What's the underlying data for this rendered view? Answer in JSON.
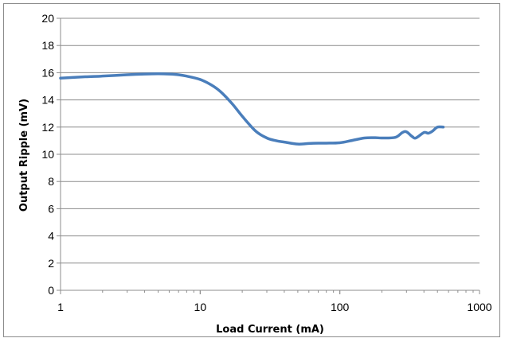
{
  "chart_data": {
    "type": "line",
    "xlabel": "Load Current (mA)",
    "ylabel": "Output Ripple (mV)",
    "xscale": "log",
    "xlim": [
      1,
      1000
    ],
    "ylim": [
      0,
      20
    ],
    "xticks": [
      1,
      10,
      100,
      1000
    ],
    "xtick_labels": [
      "1",
      "10",
      "100",
      "1000"
    ],
    "yticks": [
      0,
      2,
      4,
      6,
      8,
      10,
      12,
      14,
      16,
      18,
      20
    ],
    "ytick_labels": [
      "0",
      "2",
      "4",
      "6",
      "8",
      "10",
      "12",
      "14",
      "16",
      "18",
      "20"
    ],
    "grid": "horizontal",
    "legend": "none",
    "series": [
      {
        "color": "#4a7ebb",
        "x": [
          1,
          1.5,
          2,
          3,
          4,
          5,
          6,
          7,
          8,
          10,
          12,
          14,
          17,
          20,
          25,
          30,
          35,
          40,
          50,
          60,
          70,
          80,
          100,
          120,
          150,
          180,
          200,
          250,
          280,
          300,
          330,
          350,
          400,
          430,
          460,
          500,
          550
        ],
        "y": [
          15.6,
          15.7,
          15.75,
          15.85,
          15.9,
          15.92,
          15.9,
          15.85,
          15.75,
          15.5,
          15.1,
          14.6,
          13.7,
          12.8,
          11.7,
          11.2,
          11.0,
          10.9,
          10.75,
          10.8,
          10.82,
          10.82,
          10.85,
          11.0,
          11.2,
          11.22,
          11.2,
          11.25,
          11.6,
          11.65,
          11.3,
          11.2,
          11.6,
          11.55,
          11.7,
          12.0,
          12.0
        ]
      }
    ]
  }
}
